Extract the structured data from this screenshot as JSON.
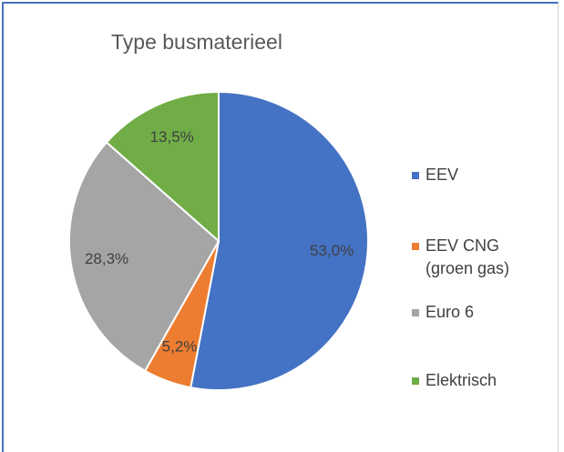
{
  "chart_data": {
    "type": "pie",
    "title": "Type busmaterieel",
    "categories": [
      "EEV",
      "EEV CNG (groen gas)",
      "Euro 6",
      "Elektrisch"
    ],
    "values": [
      53.0,
      5.2,
      28.3,
      13.5
    ],
    "value_labels": [
      "53,0%",
      "5,2%",
      "28,3%",
      "13,5%"
    ],
    "colors": [
      "#4472c4",
      "#ed7d31",
      "#a5a5a5",
      "#70ad47"
    ],
    "legend": "right"
  }
}
